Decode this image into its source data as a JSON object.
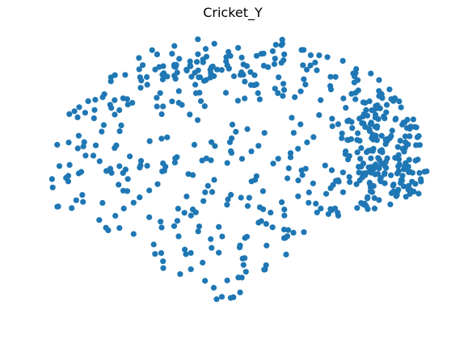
{
  "chart_data": {
    "type": "scatter",
    "title": "Cricket_Y",
    "xlabel": "",
    "ylabel": "",
    "axes_visible": false,
    "grid": false,
    "color": "#1f77b4",
    "xlim": [
      0,
      100
    ],
    "ylim": [
      0,
      100
    ],
    "point_count": 600
  }
}
